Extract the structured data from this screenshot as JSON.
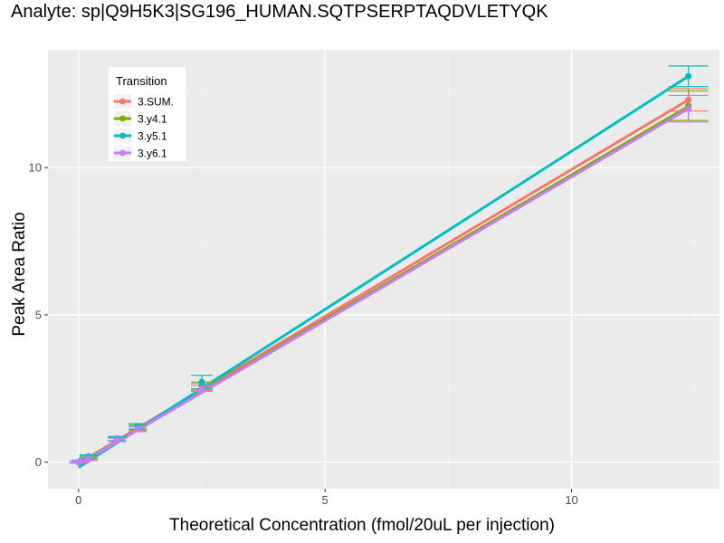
{
  "chart_data": {
    "type": "line",
    "title": "Analyte: sp|Q9H5K3|SG196_HUMAN.SQTPSERPTAQDVLETYQK",
    "xlabel": "Theoretical Concentration (fmol/20uL per injection)",
    "ylabel": "Peak Area Ratio",
    "xlim": [
      -0.62,
      13.0
    ],
    "ylim": [
      -0.9,
      14.0
    ],
    "xticks": [
      0,
      5,
      10
    ],
    "yticks": [
      0,
      5,
      10
    ],
    "grid": true,
    "legend": {
      "title": "Transition",
      "position": "top-left"
    },
    "series": [
      {
        "name": "3.SUM.",
        "color": "#F8766D",
        "x": [
          0,
          0.04,
          0.2,
          0.78,
          1.2,
          2.5,
          12.37
        ],
        "y": [
          0.0,
          0.02,
          0.1,
          0.76,
          1.14,
          2.55,
          12.3
        ],
        "err": [
          0.03,
          0.03,
          0.05,
          0.06,
          0.08,
          0.12,
          0.38
        ]
      },
      {
        "name": "3.y4.1",
        "color": "#7CAE00",
        "x": [
          0,
          0.04,
          0.2,
          0.78,
          1.2,
          2.5,
          12.37
        ],
        "y": [
          0.0,
          0.03,
          0.16,
          0.79,
          1.18,
          2.6,
          12.1
        ],
        "err": [
          0.03,
          0.03,
          0.05,
          0.06,
          0.08,
          0.12,
          0.5
        ]
      },
      {
        "name": "3.y5.1",
        "color": "#00BFC4",
        "x": [
          0,
          0.04,
          0.2,
          0.78,
          1.2,
          2.5,
          12.37
        ],
        "y": [
          0.0,
          0.04,
          0.2,
          0.8,
          1.22,
          2.72,
          13.1
        ],
        "err": [
          0.03,
          0.03,
          0.05,
          0.07,
          0.09,
          0.23,
          0.35
        ]
      },
      {
        "name": "3.y6.1",
        "color": "#C77CFF",
        "x": [
          0,
          0.04,
          0.2,
          0.78,
          1.2,
          2.5,
          12.37
        ],
        "y": [
          0.0,
          0.02,
          0.12,
          0.76,
          1.12,
          2.5,
          12.0
        ],
        "err": [
          0.03,
          0.03,
          0.05,
          0.06,
          0.08,
          0.1,
          0.45
        ]
      }
    ],
    "fit_lines": [
      {
        "name": "3.SUM.",
        "color": "#F8766D",
        "x": [
          0,
          12.37
        ],
        "y": [
          -0.04,
          12.3
        ]
      },
      {
        "name": "3.y4.1",
        "color": "#7CAE00",
        "x": [
          0,
          12.37
        ],
        "y": [
          -0.06,
          12.08
        ]
      },
      {
        "name": "3.y5.1",
        "color": "#00BFC4",
        "x": [
          0,
          12.37
        ],
        "y": [
          -0.18,
          13.1
        ]
      },
      {
        "name": "3.y6.1",
        "color": "#C77CFF",
        "x": [
          0,
          12.37
        ],
        "y": [
          -0.08,
          12.0
        ]
      }
    ]
  }
}
